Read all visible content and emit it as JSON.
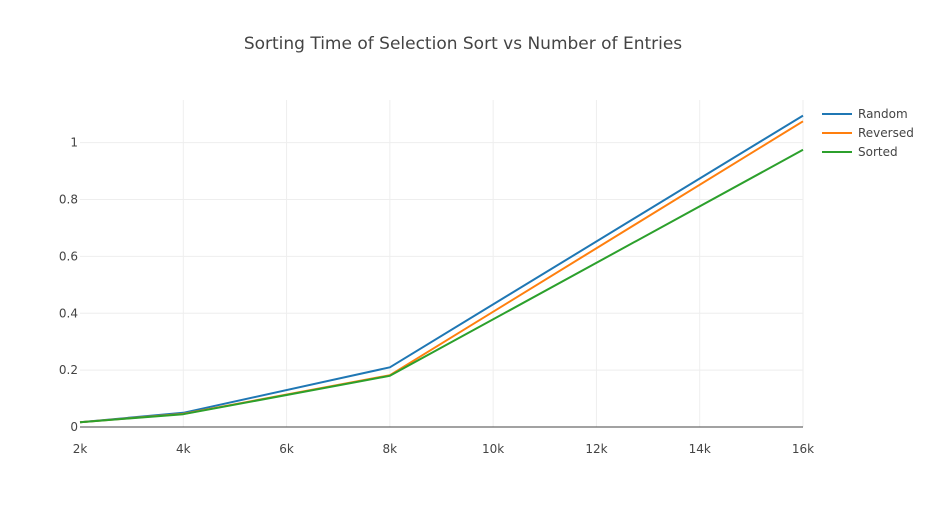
{
  "chart_data": {
    "type": "line",
    "title": "Sorting Time of Selection Sort vs Number of Entries",
    "xlabel": "",
    "ylabel": "",
    "x": [
      2000,
      4000,
      8000,
      16000
    ],
    "xlim": [
      2000,
      16000
    ],
    "ylim": [
      0,
      1.15
    ],
    "x_ticks": [
      2000,
      4000,
      6000,
      8000,
      10000,
      12000,
      14000,
      16000
    ],
    "x_tick_labels": [
      "2k",
      "4k",
      "6k",
      "8k",
      "10k",
      "12k",
      "14k",
      "16k"
    ],
    "y_ticks": [
      0,
      0.2,
      0.4,
      0.6,
      0.8,
      1
    ],
    "y_tick_labels": [
      "0",
      "0.2",
      "0.4",
      "0.6",
      "0.8",
      "1"
    ],
    "grid": true,
    "legend_position": "top-right",
    "series": [
      {
        "name": "Random",
        "color": "#1f77b4",
        "values": [
          0.017,
          0.05,
          0.21,
          1.095
        ]
      },
      {
        "name": "Reversed",
        "color": "#ff7f0e",
        "values": [
          0.017,
          0.046,
          0.182,
          1.075
        ]
      },
      {
        "name": "Sorted",
        "color": "#2ca02c",
        "values": [
          0.017,
          0.045,
          0.18,
          0.975
        ]
      }
    ]
  }
}
